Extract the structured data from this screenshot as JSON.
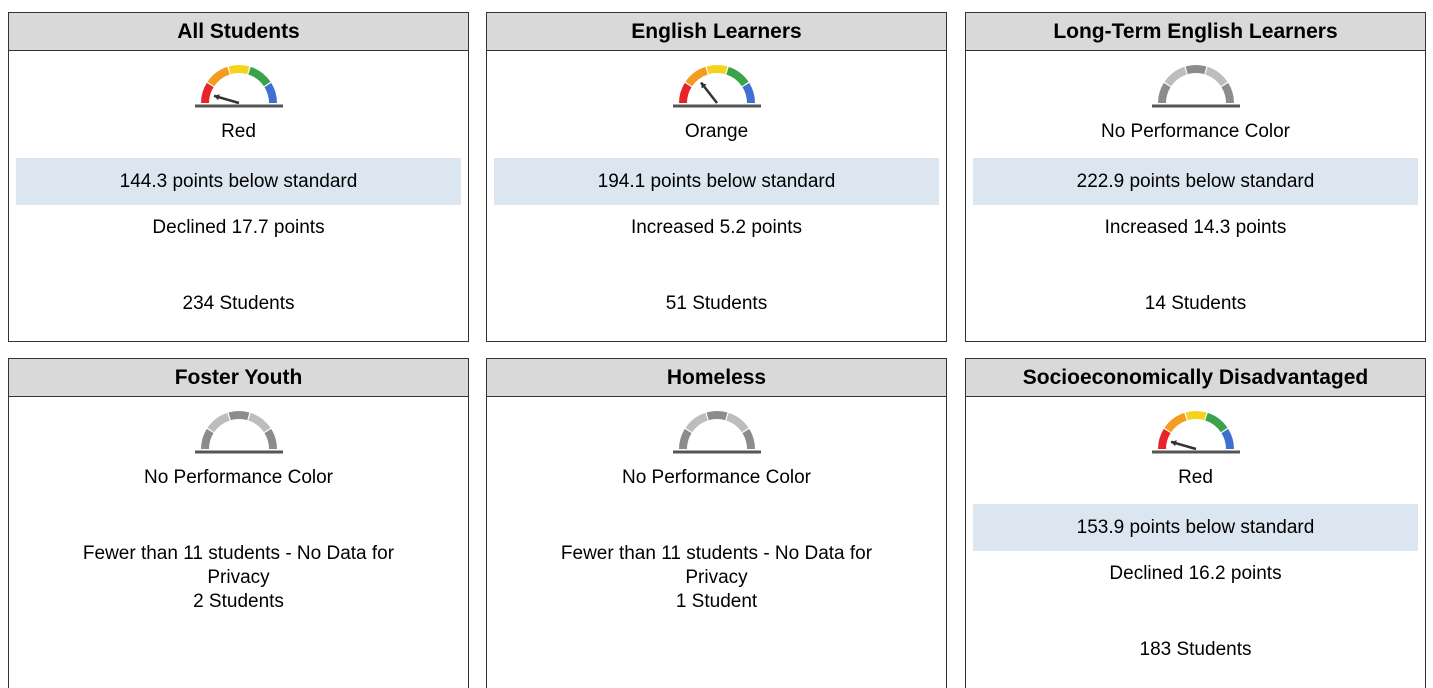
{
  "cards": [
    {
      "title": "All Students",
      "color": "Red",
      "gauge_segment": 0,
      "status": "144.3 points below standard",
      "change": "Declined 17.7 points",
      "students": "234 Students"
    },
    {
      "title": "English Learners",
      "color": "Orange",
      "gauge_segment": 1,
      "status": "194.1 points below standard",
      "change": "Increased 5.2 points",
      "students": "51 Students"
    },
    {
      "title": "Long-Term English Learners",
      "color": "No Performance Color",
      "gauge_segment": null,
      "status": "222.9 points below standard",
      "change": "Increased 14.3 points",
      "students": "14 Students"
    },
    {
      "title": "Foster Youth",
      "color": "No Performance Color",
      "gauge_segment": null,
      "note": "Fewer than 11 students - No Data for Privacy",
      "students": "2 Students"
    },
    {
      "title": "Homeless",
      "color": "No Performance Color",
      "gauge_segment": null,
      "note": "Fewer than 11 students - No Data for Privacy",
      "students": "1 Student"
    },
    {
      "title": "Socioeconomically Disadvantaged",
      "color": "Red",
      "gauge_segment": 0,
      "status": "153.9 points below standard",
      "change": "Declined 16.2 points",
      "students": "183 Students"
    }
  ]
}
